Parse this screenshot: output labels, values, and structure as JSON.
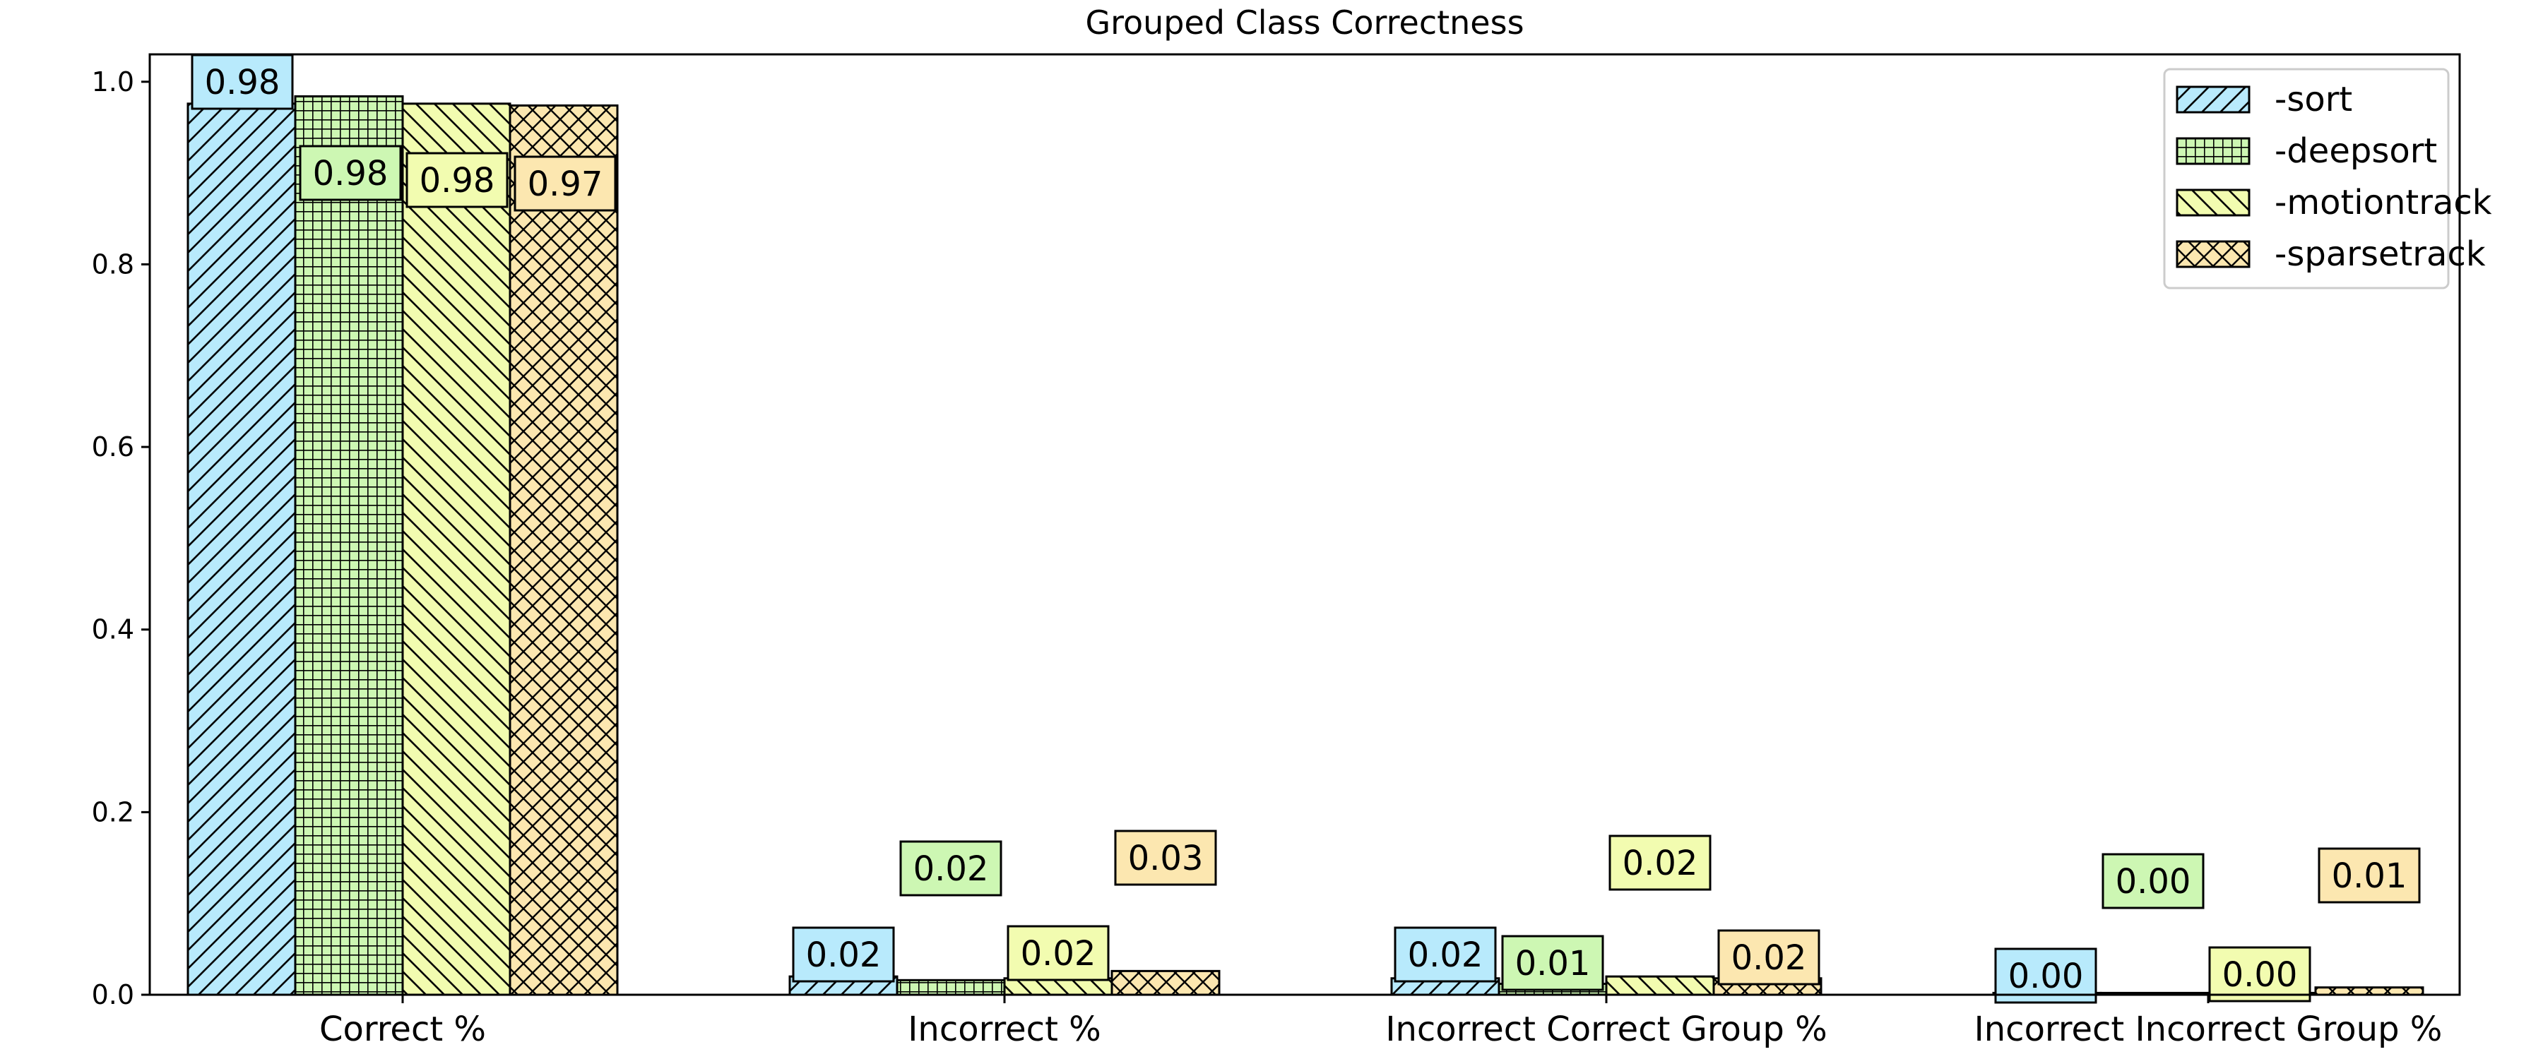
{
  "chart_data": {
    "type": "bar",
    "title": "Grouped Class Correctness",
    "xlabel": "",
    "ylabel": "",
    "categories": [
      "Correct %",
      "Incorrect %",
      "Incorrect Correct Group %",
      "Incorrect Incorrect Group %"
    ],
    "series": [
      {
        "name": "-sort",
        "values": [
          0.976,
          0.02,
          0.018,
          0.002
        ],
        "labels": [
          "0.98",
          "0.02",
          "0.02",
          "0.00"
        ],
        "color": "#b8eafc",
        "hatch": "diagonal"
      },
      {
        "name": "-deepsort",
        "values": [
          0.984,
          0.016,
          0.012,
          0.002
        ],
        "labels": [
          "0.98",
          "0.02",
          "0.01",
          "0.00"
        ],
        "color": "#cdf7b3",
        "hatch": "grid"
      },
      {
        "name": "-motiontrack",
        "values": [
          0.976,
          0.018,
          0.02,
          0.002
        ],
        "labels": [
          "0.98",
          "0.02",
          "0.02",
          "0.00"
        ],
        "color": "#f2fcb0",
        "hatch": "back-diagonal"
      },
      {
        "name": "-sparsetrack",
        "values": [
          0.974,
          0.026,
          0.018,
          0.008
        ],
        "labels": [
          "0.97",
          "0.03",
          "0.02",
          "0.01"
        ],
        "color": "#fce7b0",
        "hatch": "crosshatch"
      }
    ],
    "ylim": [
      0,
      1.03
    ],
    "yticks": [
      "0.0",
      "0.2",
      "0.4",
      "0.6",
      "0.8",
      "1.0"
    ],
    "grid": false,
    "legend_position": "top-right"
  }
}
